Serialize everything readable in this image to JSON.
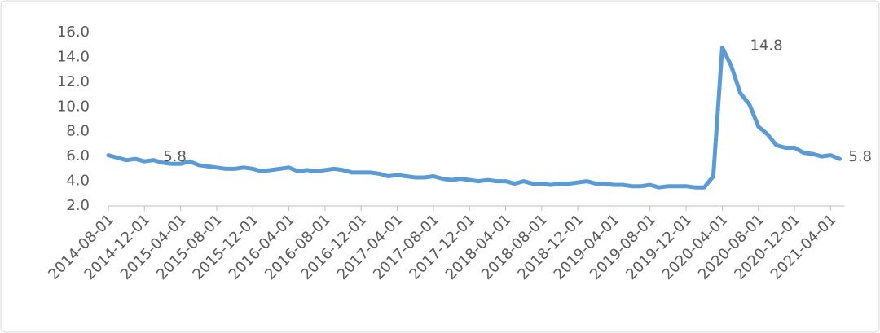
{
  "chart_data": {
    "type": "line",
    "categories": [
      "2014-08-01",
      null,
      null,
      null,
      "2014-12-01",
      null,
      null,
      null,
      "2015-04-01",
      null,
      null,
      null,
      "2015-08-01",
      null,
      null,
      null,
      "2015-12-01",
      null,
      null,
      null,
      "2016-04-01",
      null,
      null,
      null,
      "2016-08-01",
      null,
      null,
      null,
      "2016-12-01",
      null,
      null,
      null,
      "2017-04-01",
      null,
      null,
      null,
      "2017-08-01",
      null,
      null,
      null,
      "2017-12-01",
      null,
      null,
      null,
      "2018-04-01",
      null,
      null,
      null,
      "2018-08-01",
      null,
      null,
      null,
      "2018-12-01",
      null,
      null,
      null,
      "2019-04-01",
      null,
      null,
      null,
      "2019-08-01",
      null,
      null,
      null,
      "2019-12-01",
      null,
      null,
      null,
      "2020-04-01",
      null,
      null,
      null,
      "2020-08-01",
      null,
      null,
      null,
      "2020-12-01",
      null,
      null,
      null,
      "2021-04-01",
      null
    ],
    "series": [
      {
        "color": "#5b9bd5",
        "values": [
          6.1,
          5.9,
          5.7,
          5.8,
          5.6,
          5.7,
          5.5,
          5.4,
          5.4,
          5.6,
          5.3,
          5.2,
          5.1,
          5.0,
          5.0,
          5.1,
          5.0,
          4.8,
          4.9,
          5.0,
          5.1,
          4.8,
          4.9,
          4.8,
          4.9,
          5.0,
          4.9,
          4.7,
          4.7,
          4.7,
          4.6,
          4.4,
          4.5,
          4.4,
          4.3,
          4.3,
          4.4,
          4.2,
          4.1,
          4.2,
          4.1,
          4.0,
          4.1,
          4.0,
          4.0,
          3.8,
          4.0,
          3.8,
          3.8,
          3.7,
          3.8,
          3.8,
          3.9,
          4.0,
          3.8,
          3.8,
          3.7,
          3.7,
          3.6,
          3.6,
          3.7,
          3.5,
          3.6,
          3.6,
          3.6,
          3.5,
          3.5,
          4.4,
          14.8,
          13.3,
          11.1,
          10.2,
          8.4,
          7.8,
          6.9,
          6.7,
          6.7,
          6.3,
          6.2,
          6.0,
          6.1,
          5.8
        ],
        "value_labels": [
          null,
          null,
          null,
          "5.8",
          null,
          null,
          null,
          null,
          null,
          null,
          null,
          null,
          null,
          null,
          null,
          null,
          null,
          null,
          null,
          null,
          null,
          null,
          null,
          null,
          null,
          null,
          null,
          null,
          null,
          null,
          null,
          null,
          null,
          null,
          null,
          null,
          null,
          null,
          null,
          null,
          null,
          null,
          null,
          null,
          null,
          null,
          null,
          null,
          null,
          null,
          null,
          null,
          null,
          null,
          null,
          null,
          null,
          null,
          null,
          null,
          null,
          null,
          null,
          null,
          null,
          null,
          null,
          null,
          "14.8",
          null,
          null,
          null,
          null,
          null,
          null,
          null,
          null,
          null,
          null,
          null,
          null,
          "5.8"
        ]
      }
    ],
    "ylim": [
      2,
      16
    ],
    "yticks": [
      {
        "value": 2,
        "label": "2.0"
      },
      {
        "value": 4,
        "label": "4.0"
      },
      {
        "value": 6,
        "label": "6.0"
      },
      {
        "value": 8,
        "label": "8.0"
      },
      {
        "value": 10,
        "label": "10.0"
      },
      {
        "value": 12,
        "label": "12.0"
      },
      {
        "value": 14,
        "label": "14.0"
      },
      {
        "value": 16,
        "label": "16.0"
      }
    ],
    "grid": false
  }
}
